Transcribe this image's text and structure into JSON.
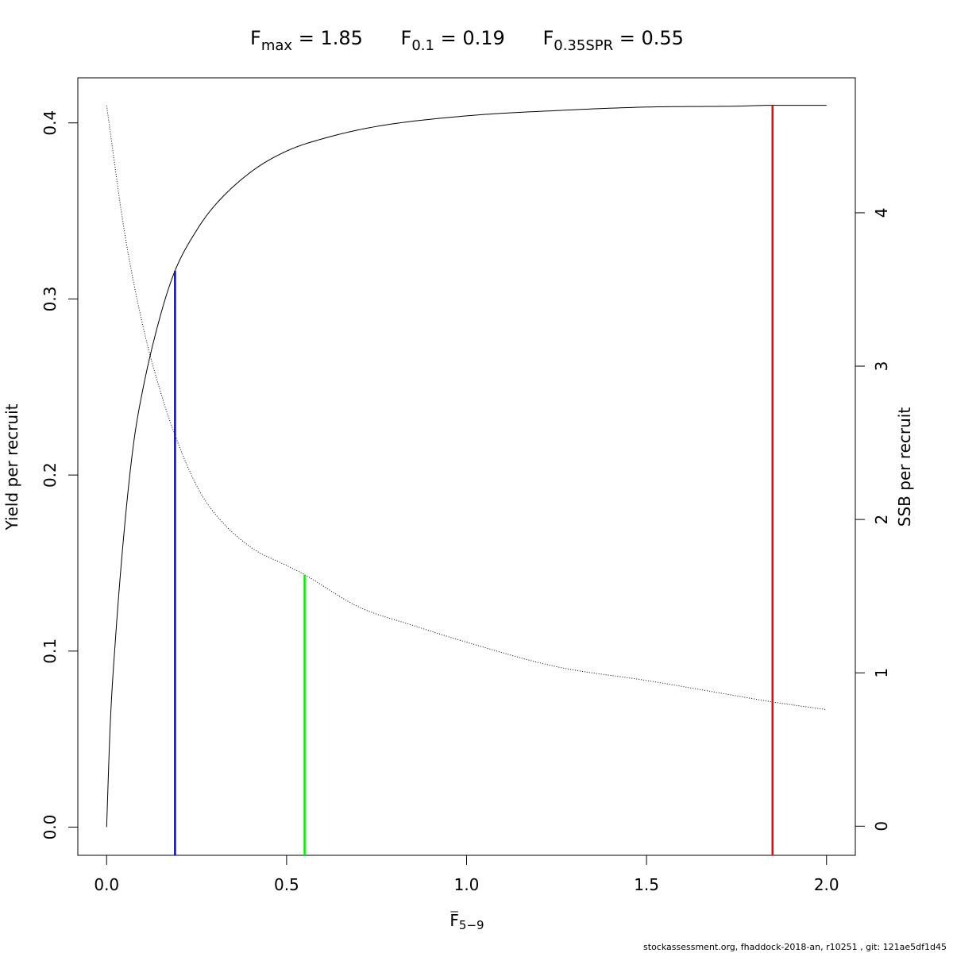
{
  "footer": "stockassessment.org, fhaddock-2018-an, r10251 , git: 121ae5df1d45",
  "chart_data": {
    "type": "line",
    "title_parts": [
      {
        "label_main": "F",
        "label_sub": "max",
        "eq": " = ",
        "value": "1.85"
      },
      {
        "label_main": "F",
        "label_sub": "0.1",
        "eq": " = ",
        "value": "0.19"
      },
      {
        "label_main": "F",
        "label_sub": "0.35SPR",
        "eq": " = ",
        "value": "0.55"
      }
    ],
    "xlabel_main": "F",
    "xlabel_sub": "5−9",
    "ylabel_left": "Yield per recruit",
    "ylabel_right": "SSB per recruit",
    "xlim": [
      -0.08,
      2.08
    ],
    "ylim_left": [
      -0.016,
      0.4256
    ],
    "ylim_right": [
      -0.19,
      4.88
    ],
    "x_ticks": [
      0,
      0.5,
      1,
      1.5,
      2
    ],
    "x_tick_labels": [
      "0.0",
      "0.5",
      "1.0",
      "1.5",
      "2.0"
    ],
    "y_left_ticks": [
      0,
      0.1,
      0.2,
      0.3,
      0.4
    ],
    "y_left_tick_labels": [
      "0.0",
      "0.1",
      "0.2",
      "0.3",
      "0.4"
    ],
    "y_right_ticks": [
      0,
      1,
      2,
      3,
      4
    ],
    "y_right_tick_labels": [
      "0",
      "1",
      "2",
      "3",
      "4"
    ],
    "series": [
      {
        "axis": "left",
        "style": "solid",
        "color": "#000000",
        "x": [
          0,
          0.01,
          0.025,
          0.05,
          0.075,
          0.1,
          0.15,
          0.19,
          0.25,
          0.3,
          0.4,
          0.5,
          0.6,
          0.75,
          1.0,
          1.25,
          1.5,
          1.75,
          1.85,
          2.0
        ],
        "y": [
          0,
          0.058,
          0.108,
          0.171,
          0.218,
          0.248,
          0.291,
          0.316,
          0.339,
          0.353,
          0.372,
          0.384,
          0.391,
          0.398,
          0.404,
          0.407,
          0.409,
          0.4095,
          0.41,
          0.41
        ]
      },
      {
        "axis": "right",
        "style": "dotted",
        "color": "#000000",
        "x": [
          0,
          0.05,
          0.1,
          0.15,
          0.19,
          0.25,
          0.3,
          0.4,
          0.5,
          0.55,
          0.7,
          0.85,
          1.0,
          1.25,
          1.5,
          1.75,
          1.85,
          2.0
        ],
        "y": [
          4.7,
          3.87,
          3.27,
          2.83,
          2.55,
          2.22,
          2.04,
          1.82,
          1.7,
          1.64,
          1.43,
          1.31,
          1.2,
          1.04,
          0.95,
          0.85,
          0.81,
          0.76
        ]
      }
    ],
    "reference_lines": [
      {
        "name": "Fmax",
        "x": 1.85,
        "axis": "left",
        "y_top": 0.41,
        "color": "#ff0000"
      },
      {
        "name": "F0.1",
        "x": 0.19,
        "axis": "left",
        "y_top": 0.316,
        "color": "#0000ff"
      },
      {
        "name": "F0.35SPR",
        "x": 0.55,
        "axis": "right",
        "y_top": 1.64,
        "color": "#00ee00"
      }
    ],
    "grid": false
  }
}
